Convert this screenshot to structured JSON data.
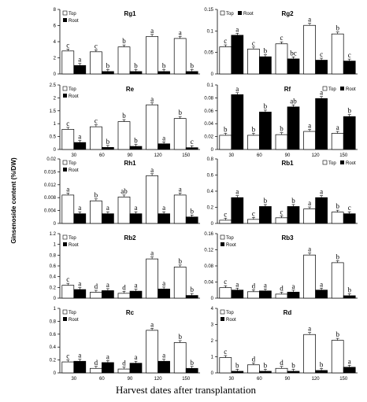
{
  "chart_data": {
    "type": "bar",
    "ylabel": "Ginsenoside content (%/DW)",
    "xlabel": "Harvest dates after transplantation",
    "categories": [
      "30",
      "60",
      "90",
      "120",
      "150"
    ],
    "legend_labels": [
      "Top",
      "Root"
    ],
    "panels": [
      {
        "title": "Rg1",
        "ylim": [
          0,
          8
        ],
        "yticks": [
          "0",
          "2",
          "4",
          "6",
          "8"
        ],
        "legend_position": "top-left",
        "series": [
          {
            "name": "Top",
            "values": [
              2.85,
              2.75,
              3.35,
              4.65,
              4.4
            ]
          },
          {
            "name": "Root",
            "values": [
              1.05,
              0.3,
              0.3,
              0.3,
              0.3
            ]
          }
        ],
        "letters": [
          [
            "c",
            "a"
          ],
          [
            "c",
            "b"
          ],
          [
            "b",
            "b"
          ],
          [
            "a",
            "b"
          ],
          [
            "a",
            "b"
          ]
        ]
      },
      {
        "title": "Rg2",
        "ylim": [
          0,
          0.15
        ],
        "yticks": [
          "0",
          "0.05",
          "0.1",
          "0.15"
        ],
        "legend_position": "top-left",
        "series": [
          {
            "name": "Top",
            "values": [
              0.063,
              0.058,
              0.07,
              0.113,
              0.093
            ]
          },
          {
            "name": "Root",
            "values": [
              0.09,
              0.04,
              0.035,
              0.032,
              0.03
            ]
          }
        ],
        "letters": [
          [
            "c",
            "a"
          ],
          [
            "c",
            "b"
          ],
          [
            "c",
            "bc"
          ],
          [
            "a",
            "c"
          ],
          [
            "b",
            "c"
          ]
        ]
      },
      {
        "title": "Re",
        "ylim": [
          0,
          2.5
        ],
        "yticks": [
          "0",
          "0.5",
          "1",
          "1.5",
          "2",
          "2.5"
        ],
        "legend_position": "top-left",
        "series": [
          {
            "name": "Top",
            "values": [
              0.78,
              0.88,
              1.08,
              1.73,
              1.2
            ]
          },
          {
            "name": "Root",
            "values": [
              0.27,
              0.08,
              0.12,
              0.22,
              0.07
            ]
          }
        ],
        "letters": [
          [
            "c",
            "a"
          ],
          [
            "c",
            "b"
          ],
          [
            "b",
            "b"
          ],
          [
            "a",
            "a"
          ],
          [
            "b",
            "c"
          ]
        ]
      },
      {
        "title": "Rf",
        "ylim": [
          0,
          0.1
        ],
        "yticks": [
          "0",
          "0.02",
          "0.04",
          "0.06",
          "0.08",
          "0.1"
        ],
        "legend_position": "top-right",
        "series": [
          {
            "name": "Top",
            "values": [
              0.022,
              0.022,
              0.023,
              0.028,
              0.025
            ]
          },
          {
            "name": "Root",
            "values": [
              0.085,
              0.058,
              0.066,
              0.079,
              0.051
            ]
          }
        ],
        "letters": [
          [
            "b",
            "a"
          ],
          [
            "b",
            "b"
          ],
          [
            "b",
            "ab"
          ],
          [
            "a",
            "a"
          ],
          [
            "a",
            "b"
          ]
        ]
      },
      {
        "title": "Rh1",
        "ylim": [
          0,
          0.02
        ],
        "yticks": [
          "0",
          "0.004",
          "0.008",
          "0.012",
          "0.016",
          "0.02"
        ],
        "legend_position": "top-left",
        "series": [
          {
            "name": "Top",
            "values": [
              0.0088,
              0.007,
              0.0082,
              0.0148,
              0.0088
            ]
          },
          {
            "name": "Root",
            "values": [
              0.003,
              0.003,
              0.003,
              0.003,
              0.002
            ]
          }
        ],
        "letters": [
          [
            "a",
            "a"
          ],
          [
            "b",
            "a"
          ],
          [
            "ab",
            "a"
          ],
          [
            "a",
            "a"
          ],
          [
            "a",
            "b"
          ]
        ]
      },
      {
        "title": "Rb1",
        "ylim": [
          0,
          0.8
        ],
        "yticks": [
          "0",
          "0.2",
          "0.4",
          "0.6",
          "0.8"
        ],
        "legend_position": "top-right",
        "series": [
          {
            "name": "Top",
            "values": [
              0.04,
              0.05,
              0.07,
              0.18,
              0.14
            ]
          },
          {
            "name": "Root",
            "values": [
              0.32,
              0.21,
              0.21,
              0.32,
              0.12
            ]
          }
        ],
        "letters": [
          [
            "c",
            "a"
          ],
          [
            "c",
            "b"
          ],
          [
            "c",
            "b"
          ],
          [
            "a",
            "a"
          ],
          [
            "b",
            "c"
          ]
        ]
      },
      {
        "title": "Rb2",
        "ylim": [
          0,
          1.2
        ],
        "yticks": [
          "0",
          "0.2",
          "0.4",
          "0.6",
          "0.8",
          "1",
          "1.2"
        ],
        "legend_position": "top-left",
        "series": [
          {
            "name": "Top",
            "values": [
              0.24,
              0.11,
              0.09,
              0.73,
              0.58
            ]
          },
          {
            "name": "Root",
            "values": [
              0.16,
              0.14,
              0.13,
              0.17,
              0.05
            ]
          }
        ],
        "letters": [
          [
            "c",
            "a"
          ],
          [
            "d",
            "a"
          ],
          [
            "d",
            "a"
          ],
          [
            "a",
            "a"
          ],
          [
            "b",
            "b"
          ]
        ]
      },
      {
        "title": "Rb3",
        "ylim": [
          0,
          0.16
        ],
        "yticks": [
          "0",
          "0.04",
          "0.08",
          "0.12",
          "0.16"
        ],
        "legend_position": "top-left",
        "series": [
          {
            "name": "Top",
            "values": [
              0.026,
              0.016,
              0.01,
              0.107,
              0.088
            ]
          },
          {
            "name": "Root",
            "values": [
              0.02,
              0.018,
              0.015,
              0.02,
              0.006
            ]
          }
        ],
        "letters": [
          [
            "c",
            "a"
          ],
          [
            "d",
            "a"
          ],
          [
            "d",
            "a"
          ],
          [
            "a",
            "a"
          ],
          [
            "b",
            "b"
          ]
        ]
      },
      {
        "title": "Rc",
        "ylim": [
          0,
          1
        ],
        "yticks": [
          "0",
          "0.2",
          "0.4",
          "0.6",
          "0.8",
          "1"
        ],
        "legend_position": "top-left",
        "series": [
          {
            "name": "Top",
            "values": [
              0.17,
              0.07,
              0.06,
              0.66,
              0.47
            ]
          },
          {
            "name": "Root",
            "values": [
              0.18,
              0.16,
              0.15,
              0.18,
              0.07
            ]
          }
        ],
        "letters": [
          [
            "c",
            "a"
          ],
          [
            "d",
            "a"
          ],
          [
            "d",
            "a"
          ],
          [
            "a",
            "a"
          ],
          [
            "b",
            "b"
          ]
        ]
      },
      {
        "title": "Rd",
        "ylim": [
          0,
          4
        ],
        "yticks": [
          "0",
          "1",
          "2",
          "3",
          "4"
        ],
        "legend_position": "top-left",
        "series": [
          {
            "name": "Top",
            "values": [
              0.95,
              0.5,
              0.28,
              2.38,
              2.02
            ]
          },
          {
            "name": "Root",
            "values": [
              0.1,
              0.1,
              0.1,
              0.15,
              0.35
            ]
          }
        ],
        "letters": [
          [
            "c",
            "b"
          ],
          [
            "d",
            "b"
          ],
          [
            "d",
            "b"
          ],
          [
            "a",
            "b"
          ],
          [
            "b",
            "a"
          ]
        ]
      }
    ]
  }
}
